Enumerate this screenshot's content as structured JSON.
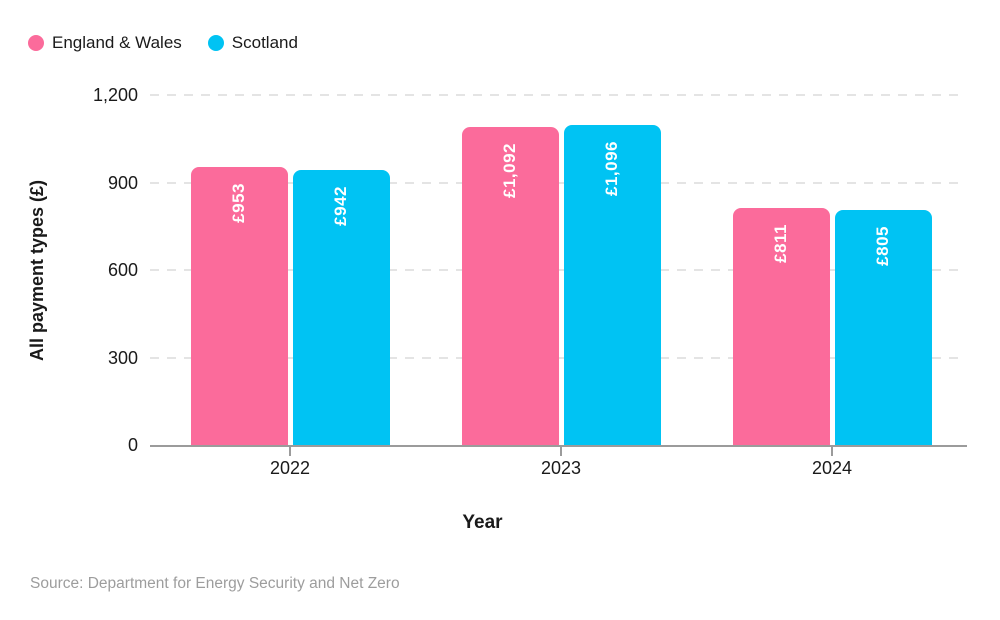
{
  "chart_data": {
    "type": "bar",
    "grouped": true,
    "categories": [
      "2022",
      "2023",
      "2024"
    ],
    "series": [
      {
        "name": "England & Wales",
        "color": "#FB6B9B",
        "values": [
          953,
          1092,
          811
        ],
        "bar_labels": [
          "£953",
          "£1,092",
          "£811"
        ]
      },
      {
        "name": "Scotland",
        "color": "#00C3F3",
        "values": [
          942,
          1096,
          805
        ],
        "bar_labels": [
          "£942",
          "£1,096",
          "£805"
        ]
      }
    ],
    "xlabel": "Year",
    "ylabel": "All payment types (£)",
    "ylim": [
      0,
      1200
    ],
    "yticks": [
      {
        "value": 0,
        "label": "0"
      },
      {
        "value": 300,
        "label": "300"
      },
      {
        "value": 600,
        "label": "600"
      },
      {
        "value": 900,
        "label": "900"
      },
      {
        "value": 1200,
        "label": "1,200"
      }
    ],
    "grid": "horizontal-dashed",
    "legend_position": "top-left",
    "bar_label_color": "#ffffff"
  },
  "footer": {
    "source": "Source: Department for Energy Security and Net Zero"
  },
  "colors": {
    "axis": "#9b9b9b",
    "gridline": "#e4e4e4",
    "text": "#1a1a1a",
    "source_text": "#9d9d9d",
    "background": "#ffffff"
  }
}
